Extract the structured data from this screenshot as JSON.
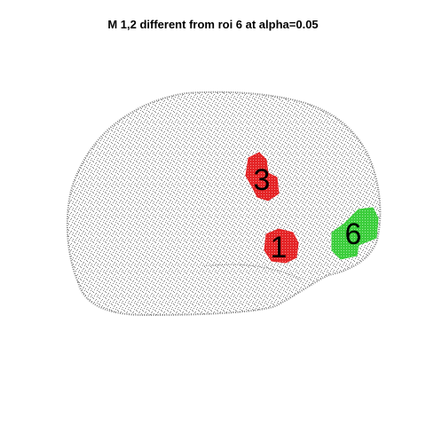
{
  "title": "M 1,2 different from roi 6 at alpha=0.05",
  "colors": {
    "background": "#ffffff",
    "brain_points": "#7f7f7f",
    "significant_roi": "#e41a1c",
    "reference_roi": "#33cc33",
    "label": "#000000"
  },
  "rois": [
    {
      "label": "3",
      "status": "significant"
    },
    {
      "label": "1",
      "status": "significant"
    },
    {
      "label": "6",
      "status": "reference"
    }
  ]
}
